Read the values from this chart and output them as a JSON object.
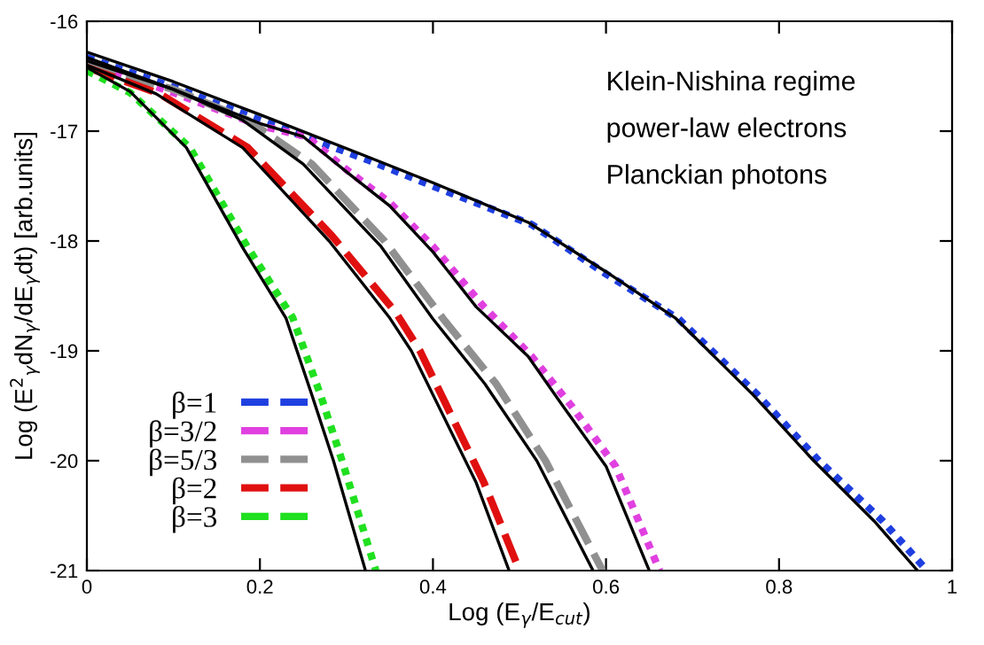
{
  "chart_data": {
    "type": "line",
    "xlabel": "Log (E$_{γ}$/E$_{cut}$)",
    "ylabel": "Log (E$^{2}$$_{γ}$dN$_{γ}$/dE$_{γ}$dt) [arb.units]",
    "annotations": [
      "Klein-Nishina regime",
      "power-law electrons",
      "Planckian photons"
    ],
    "xlim": [
      0,
      1
    ],
    "ylim": [
      -21,
      -16
    ],
    "xticks": [
      0,
      0.2,
      0.4,
      0.6,
      0.8,
      1
    ],
    "yticks": [
      -21,
      -20,
      -19,
      -18,
      -17,
      -16
    ],
    "grid": false,
    "legend": "bottom left",
    "marker": "none",
    "series": [
      {
        "name": "β=1",
        "color": "#1f3fe0",
        "line_style": "dotted",
        "x": [
          0,
          0.1,
          0.2,
          0.324,
          0.4,
          0.514,
          0.6,
          0.684,
          0.775,
          0.846,
          0.92,
          0.971
        ],
        "values": [
          -16.33,
          -16.6,
          -16.9,
          -17.26,
          -17.5,
          -17.85,
          -18.3,
          -18.71,
          -19.4,
          -20.0,
          -20.55,
          -21
        ]
      },
      {
        "name": "β=3/2",
        "color": "#e040e0",
        "line_style": "dotted",
        "x": [
          0,
          0.1,
          0.2,
          0.254,
          0.3,
          0.35,
          0.4,
          0.459,
          0.514,
          0.56,
          0.611,
          0.662
        ],
        "values": [
          -16.38,
          -16.65,
          -16.95,
          -17.05,
          -17.35,
          -17.65,
          -18.05,
          -18.6,
          -19.05,
          -19.5,
          -20.05,
          -21
        ]
      },
      {
        "name": "β=5/3",
        "color": "#909090",
        "line_style": "dashed",
        "x": [
          0,
          0.1,
          0.186,
          0.26,
          0.344,
          0.412,
          0.473,
          0.53,
          0.596
        ],
        "values": [
          -16.4,
          -16.62,
          -16.9,
          -17.3,
          -18.0,
          -18.71,
          -19.3,
          -20.0,
          -21
        ]
      },
      {
        "name": "β=2",
        "color": "#e01010",
        "line_style": "dashed",
        "x": [
          0,
          0.084,
          0.186,
          0.283,
          0.357,
          0.385,
          0.459,
          0.5
        ],
        "values": [
          -16.42,
          -16.66,
          -17.15,
          -17.95,
          -18.65,
          -19.0,
          -20.2,
          -21
        ]
      },
      {
        "name": "β=3",
        "color": "#20e020",
        "line_style": "dotted",
        "x": [
          0,
          0.05,
          0.119,
          0.186,
          0.238,
          0.27,
          0.295,
          0.334
        ],
        "values": [
          -16.45,
          -16.65,
          -17.15,
          -18.06,
          -18.7,
          -19.4,
          -20.0,
          -21
        ]
      },
      {
        "color": "#000000",
        "line_style": "solid",
        "x": [
          0,
          0.1,
          0.2,
          0.32,
          0.4,
          0.51,
          0.6,
          0.68,
          0.77,
          0.84,
          0.91,
          0.96
        ],
        "values": [
          -16.28,
          -16.55,
          -16.85,
          -17.22,
          -17.47,
          -17.83,
          -18.28,
          -18.7,
          -19.4,
          -20.0,
          -20.55,
          -21
        ]
      },
      {
        "color": "#000000",
        "line_style": "solid",
        "x": [
          0,
          0.1,
          0.2,
          0.25,
          0.3,
          0.35,
          0.4,
          0.45,
          0.51,
          0.55,
          0.6,
          0.65
        ],
        "values": [
          -16.33,
          -16.62,
          -16.93,
          -17.05,
          -17.37,
          -17.68,
          -18.1,
          -18.6,
          -19.05,
          -19.5,
          -20.05,
          -21
        ]
      },
      {
        "color": "#000000",
        "line_style": "solid",
        "x": [
          0,
          0.1,
          0.18,
          0.25,
          0.34,
          0.4,
          0.46,
          0.52,
          0.585
        ],
        "values": [
          -16.36,
          -16.62,
          -16.9,
          -17.3,
          -18.05,
          -18.71,
          -19.3,
          -20.0,
          -21
        ]
      },
      {
        "color": "#000000",
        "line_style": "solid",
        "x": [
          0,
          0.08,
          0.18,
          0.28,
          0.35,
          0.375,
          0.45,
          0.488
        ],
        "values": [
          -16.4,
          -16.66,
          -17.15,
          -18.0,
          -18.7,
          -19.0,
          -20.2,
          -21
        ]
      },
      {
        "color": "#000000",
        "line_style": "solid",
        "x": [
          0,
          0.05,
          0.115,
          0.18,
          0.23,
          0.26,
          0.285,
          0.322
        ],
        "values": [
          -16.42,
          -16.64,
          -17.15,
          -18.06,
          -18.7,
          -19.4,
          -20.0,
          -21
        ]
      }
    ]
  }
}
